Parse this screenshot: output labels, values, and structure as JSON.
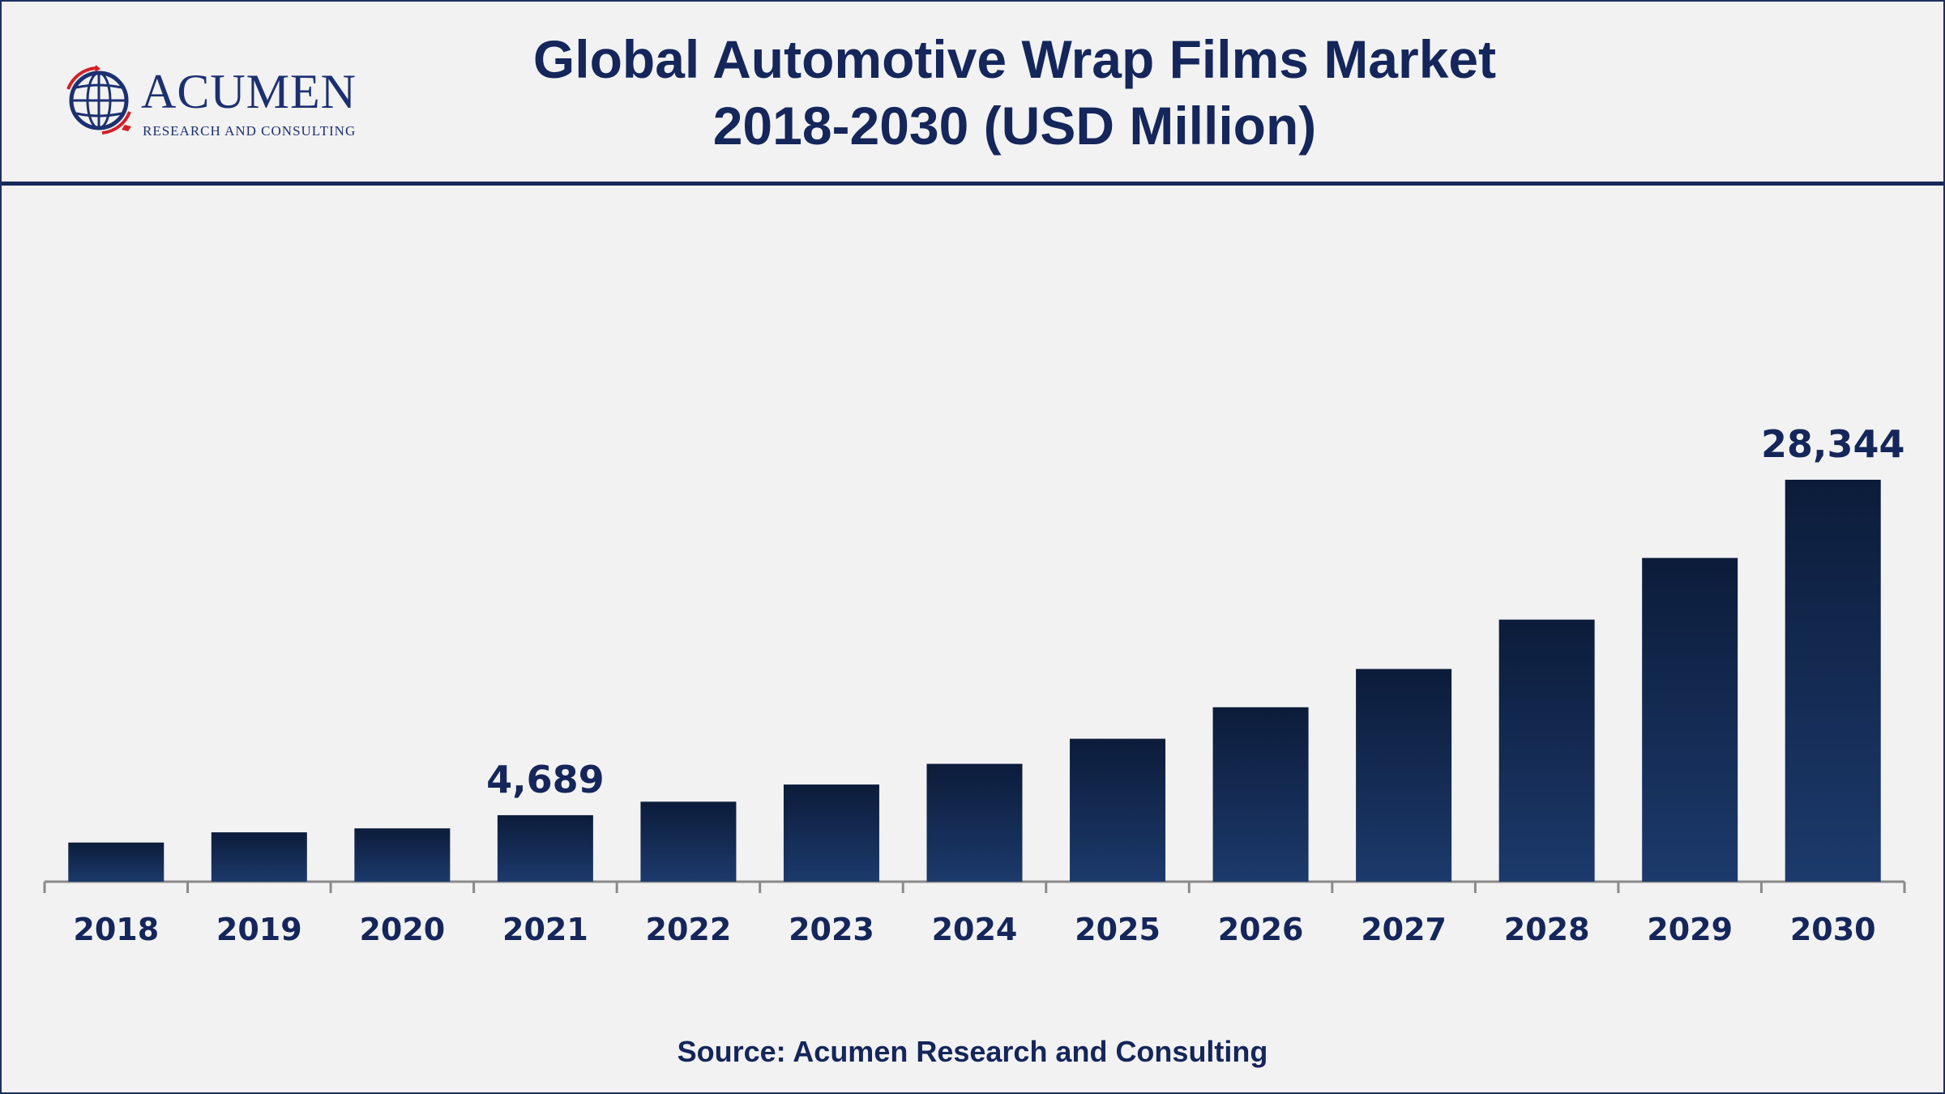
{
  "header": {
    "logo_name": "ACUMEN",
    "logo_subtitle": "RESEARCH AND CONSULTING",
    "title_line1": "Global Automotive Wrap Films Market",
    "title_line2": "2018-2030 (USD Million)"
  },
  "footer": {
    "source": "Source: Acumen Research and Consulting"
  },
  "colors": {
    "bar_top": "#0c1c3a",
    "bar_bottom": "#1c3a6c",
    "text": "#14265a",
    "axis": "#8a8a8a"
  },
  "chart_data": {
    "type": "bar",
    "categories": [
      "2018",
      "2019",
      "2020",
      "2021",
      "2022",
      "2023",
      "2024",
      "2025",
      "2026",
      "2027",
      "2028",
      "2029",
      "2030"
    ],
    "values": [
      2760,
      3480,
      3760,
      4689,
      5640,
      6850,
      8310,
      10080,
      12300,
      15000,
      18480,
      22830,
      28344
    ],
    "data_labels": [
      {
        "index": 3,
        "text": "4,689"
      },
      {
        "index": 12,
        "text": "28,344"
      }
    ],
    "title": "Global Automotive Wrap Films Market 2018-2030 (USD Million)",
    "xlabel": "",
    "ylabel": "",
    "ylim": [
      0,
      28344
    ],
    "grid": false,
    "legend": "none"
  }
}
